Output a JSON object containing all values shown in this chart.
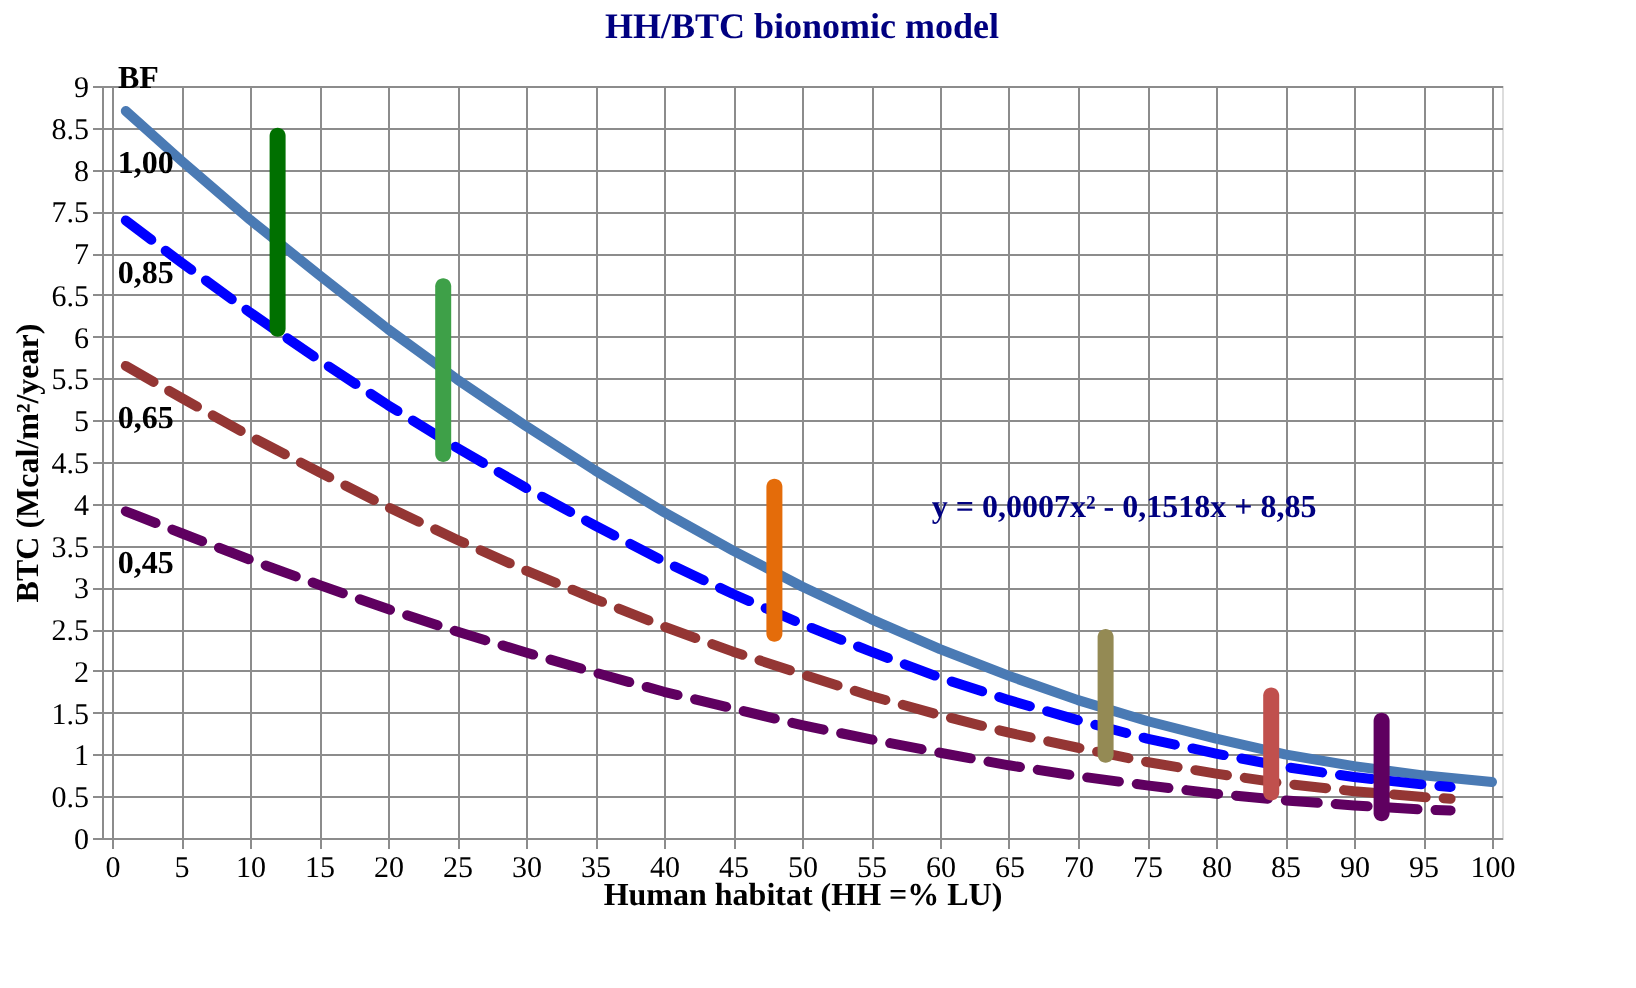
{
  "chart_data": {
    "type": "line",
    "title": "HH/BTC bionomic model",
    "xlabel": "Human habitat (HH =% LU)",
    "ylabel": "BTC (Mcal/m²/year)",
    "xlim": [
      0,
      100
    ],
    "ylim": [
      0,
      9
    ],
    "xticks": [
      0,
      5,
      10,
      15,
      20,
      25,
      30,
      35,
      40,
      45,
      50,
      55,
      60,
      65,
      70,
      75,
      80,
      85,
      90,
      95,
      100
    ],
    "yticks": [
      0,
      0.5,
      1,
      1.5,
      2,
      2.5,
      3,
      3.5,
      4,
      4.5,
      5,
      5.5,
      6,
      6.5,
      7,
      7.5,
      8,
      8.5,
      9
    ],
    "grid": true,
    "legend": false,
    "series": [
      {
        "name": "1,00",
        "line_style": "solid",
        "color": "#4a7ab4",
        "x": [
          1,
          5,
          10,
          15,
          20,
          25,
          30,
          35,
          40,
          45,
          50,
          55,
          60,
          65,
          70,
          75,
          80,
          85,
          90,
          95,
          100
        ],
        "values": [
          8.7,
          8.11,
          7.4,
          6.74,
          6.09,
          5.49,
          4.93,
          4.4,
          3.9,
          3.44,
          3.01,
          2.62,
          2.26,
          1.94,
          1.65,
          1.4,
          1.19,
          1.0,
          0.86,
          0.75,
          0.67
        ]
      },
      {
        "name": "0,85",
        "line_style": "dashed",
        "color": "#0000ff",
        "x": [
          1,
          5,
          10,
          15,
          20,
          25,
          30,
          35,
          40,
          45,
          50,
          55,
          60,
          65,
          70,
          75,
          80,
          85,
          90,
          95,
          97
        ],
        "values": [
          7.39,
          6.89,
          6.29,
          5.72,
          5.18,
          4.67,
          4.19,
          3.74,
          3.31,
          2.92,
          2.56,
          2.23,
          1.92,
          1.65,
          1.41,
          1.19,
          1.01,
          0.85,
          0.73,
          0.64,
          0.61
        ]
      },
      {
        "name": "0,65",
        "line_style": "dashed",
        "color": "#943634",
        "x": [
          1,
          5,
          10,
          15,
          20,
          25,
          30,
          35,
          40,
          45,
          50,
          55,
          60,
          65,
          70,
          75,
          80,
          85,
          90,
          95,
          97
        ],
        "values": [
          5.65,
          5.27,
          4.81,
          4.38,
          3.96,
          3.57,
          3.2,
          2.86,
          2.53,
          2.23,
          1.96,
          1.7,
          1.47,
          1.26,
          1.08,
          0.91,
          0.77,
          0.65,
          0.56,
          0.49,
          0.47
        ]
      },
      {
        "name": "0,45",
        "line_style": "dashed",
        "color": "#5f0060",
        "x": [
          1,
          5,
          10,
          15,
          20,
          25,
          30,
          35,
          40,
          45,
          50,
          55,
          60,
          65,
          70,
          75,
          80,
          85,
          90,
          95,
          97
        ],
        "values": [
          3.91,
          3.65,
          3.33,
          3.03,
          2.74,
          2.47,
          2.22,
          1.98,
          1.75,
          1.55,
          1.35,
          1.18,
          1.02,
          0.87,
          0.74,
          0.63,
          0.53,
          0.45,
          0.39,
          0.34,
          0.33
        ]
      },
      {
        "type": "bar",
        "color": "#007000",
        "x": [
          12
        ],
        "base": [
          6.0
        ],
        "values": [
          2.5
        ]
      },
      {
        "type": "bar",
        "color": "#3ea048",
        "x": [
          24
        ],
        "base": [
          4.5
        ],
        "values": [
          2.2
        ]
      },
      {
        "type": "bar",
        "color": "#e46c0a",
        "x": [
          48
        ],
        "base": [
          2.35
        ],
        "values": [
          1.95
        ]
      },
      {
        "type": "bar",
        "color": "#948a54",
        "x": [
          72
        ],
        "base": [
          0.9
        ],
        "values": [
          1.6
        ]
      },
      {
        "type": "bar",
        "color": "#c0504d",
        "x": [
          84
        ],
        "base": [
          0.45
        ],
        "values": [
          1.35
        ]
      },
      {
        "type": "bar",
        "color": "#5f0060",
        "x": [
          92
        ],
        "base": [
          0.2
        ],
        "values": [
          1.3
        ]
      }
    ],
    "legend_title": "BF",
    "annotations": [
      "y = 0,0007x² - 0,1518x + 8,85"
    ]
  }
}
